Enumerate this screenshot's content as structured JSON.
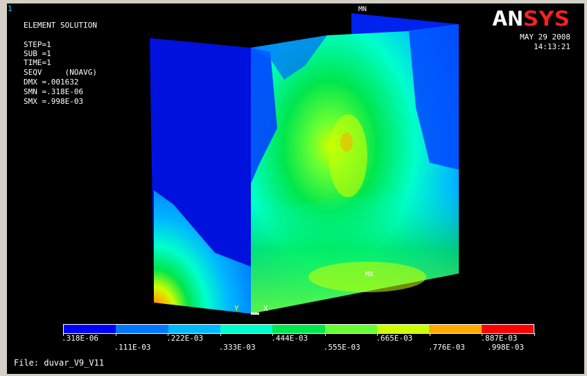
{
  "window_number": "1",
  "solution_title": "ELEMENT SOLUTION",
  "stats": [
    "STEP=1",
    "SUB =1",
    "TIME=1",
    "SEQV     (NOAVG)",
    "DMX =.001632",
    "SMN =.318E-06",
    "SMX =.998E-03"
  ],
  "logo": "ANSYS",
  "date": "MAY 29 2008",
  "time": "14:13:21",
  "markers": {
    "min_label": "MN",
    "max_label": "MX",
    "axis_y": "Y",
    "axis_x": "X"
  },
  "legend": {
    "colors": [
      "#0000ff",
      "#0077ff",
      "#00b8ff",
      "#00ffcc",
      "#00e64d",
      "#66ff33",
      "#ccff00",
      "#ffaa00",
      "#ff0000"
    ],
    "top_labels": [
      ".318E-06",
      ".222E-03",
      ".444E-03",
      ".665E-03",
      ".887E-03"
    ],
    "bottom_labels": [
      ".111E-03",
      ".333E-03",
      ".555E-03",
      ".776E-03",
      ".998E-03"
    ]
  },
  "file_label": "File: duvar_V9_V11",
  "colors": {
    "background": "#000000",
    "frame": "#d4d0c8",
    "logo_red": "#ff2020",
    "window_number": "#33ccff"
  }
}
